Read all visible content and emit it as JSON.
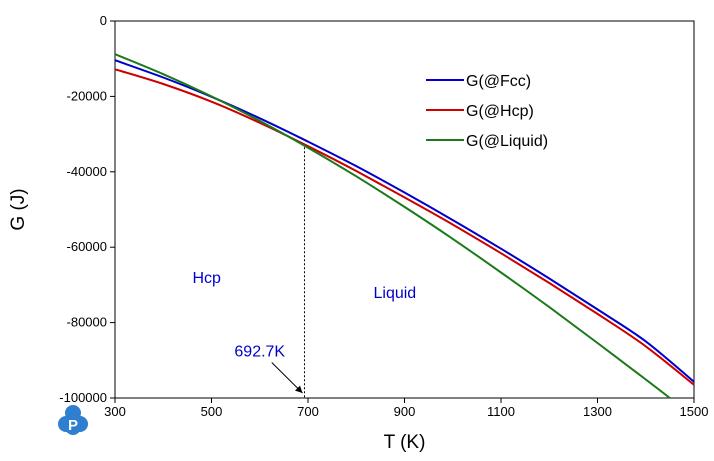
{
  "chart_data": {
    "type": "line",
    "xlabel": "T (K)",
    "ylabel": "G (J)",
    "xlim": [
      300,
      1500
    ],
    "ylim": [
      -100000,
      0
    ],
    "x_ticks": [
      300,
      500,
      700,
      900,
      1100,
      1300,
      1500
    ],
    "y_ticks": [
      0,
      -20000,
      -40000,
      -60000,
      -80000,
      -100000
    ],
    "x_tick_labels": [
      "300",
      "500",
      "700",
      "900",
      "1100",
      "1300",
      "1500"
    ],
    "y_tick_labels": [
      "0",
      "-20000",
      "-40000",
      "-60000",
      "-80000",
      "-100000"
    ],
    "grid": false,
    "legend_position": "top-right",
    "series": [
      {
        "name": "G(@Fcc)",
        "color": "#0000cc",
        "x": [
          300,
          400,
          500,
          600,
          700,
          800,
          900,
          1000,
          1100,
          1200,
          1300,
          1400,
          1500
        ],
        "y": [
          -10400,
          -15000,
          -20100,
          -25800,
          -32000,
          -38500,
          -45500,
          -52800,
          -60400,
          -68300,
          -76500,
          -85000,
          -95700
        ]
      },
      {
        "name": "G(@Hcp)",
        "color": "#cc0000",
        "x": [
          300,
          400,
          500,
          600,
          700,
          800,
          900,
          1000,
          1100,
          1200,
          1300,
          1400,
          1500
        ],
        "y": [
          -12800,
          -16700,
          -21400,
          -27000,
          -33200,
          -39800,
          -46800,
          -54000,
          -61600,
          -69500,
          -77700,
          -86300,
          -96500
        ]
      },
      {
        "name": "G(@Liquid)",
        "color": "#1a7a1a",
        "x": [
          300,
          400,
          500,
          600,
          700,
          800,
          900,
          1000,
          1100,
          1200,
          1300,
          1400,
          1450
        ],
        "y": [
          -8800,
          -14100,
          -20000,
          -26500,
          -33600,
          -41200,
          -49300,
          -57800,
          -66700,
          -75900,
          -85400,
          -95100,
          -100000
        ]
      }
    ],
    "annotations": {
      "region_hcp": {
        "text": "Hcp",
        "x": 490,
        "y": -69500
      },
      "region_liquid": {
        "text": "Liquid",
        "x": 880,
        "y": -73500
      },
      "transition": {
        "text": "692.7K",
        "x": 692.7,
        "y": -33500,
        "label_x": 600,
        "label_y": -89000
      }
    },
    "annotation_color": "#0000cc"
  }
}
